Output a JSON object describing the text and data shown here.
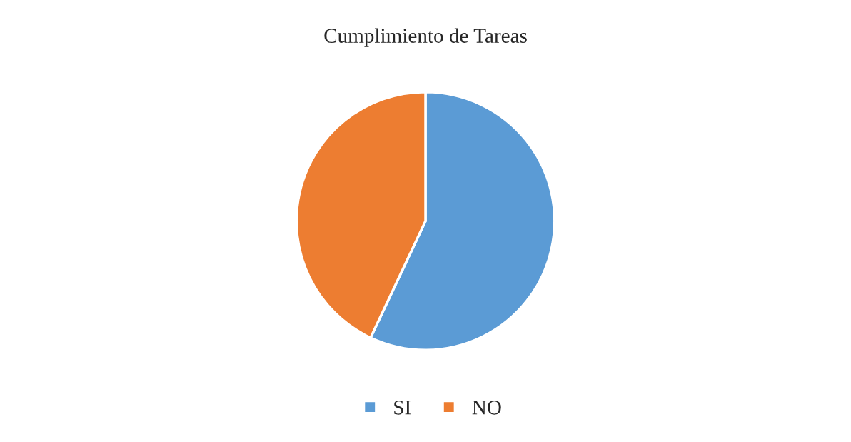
{
  "chart_data": {
    "type": "pie",
    "title": "Cumplimiento de Tareas",
    "categories": [
      "SI",
      "NO"
    ],
    "values": [
      57,
      43
    ],
    "colors": [
      "#5b9bd5",
      "#ed7d31"
    ],
    "legend": "bottom"
  }
}
